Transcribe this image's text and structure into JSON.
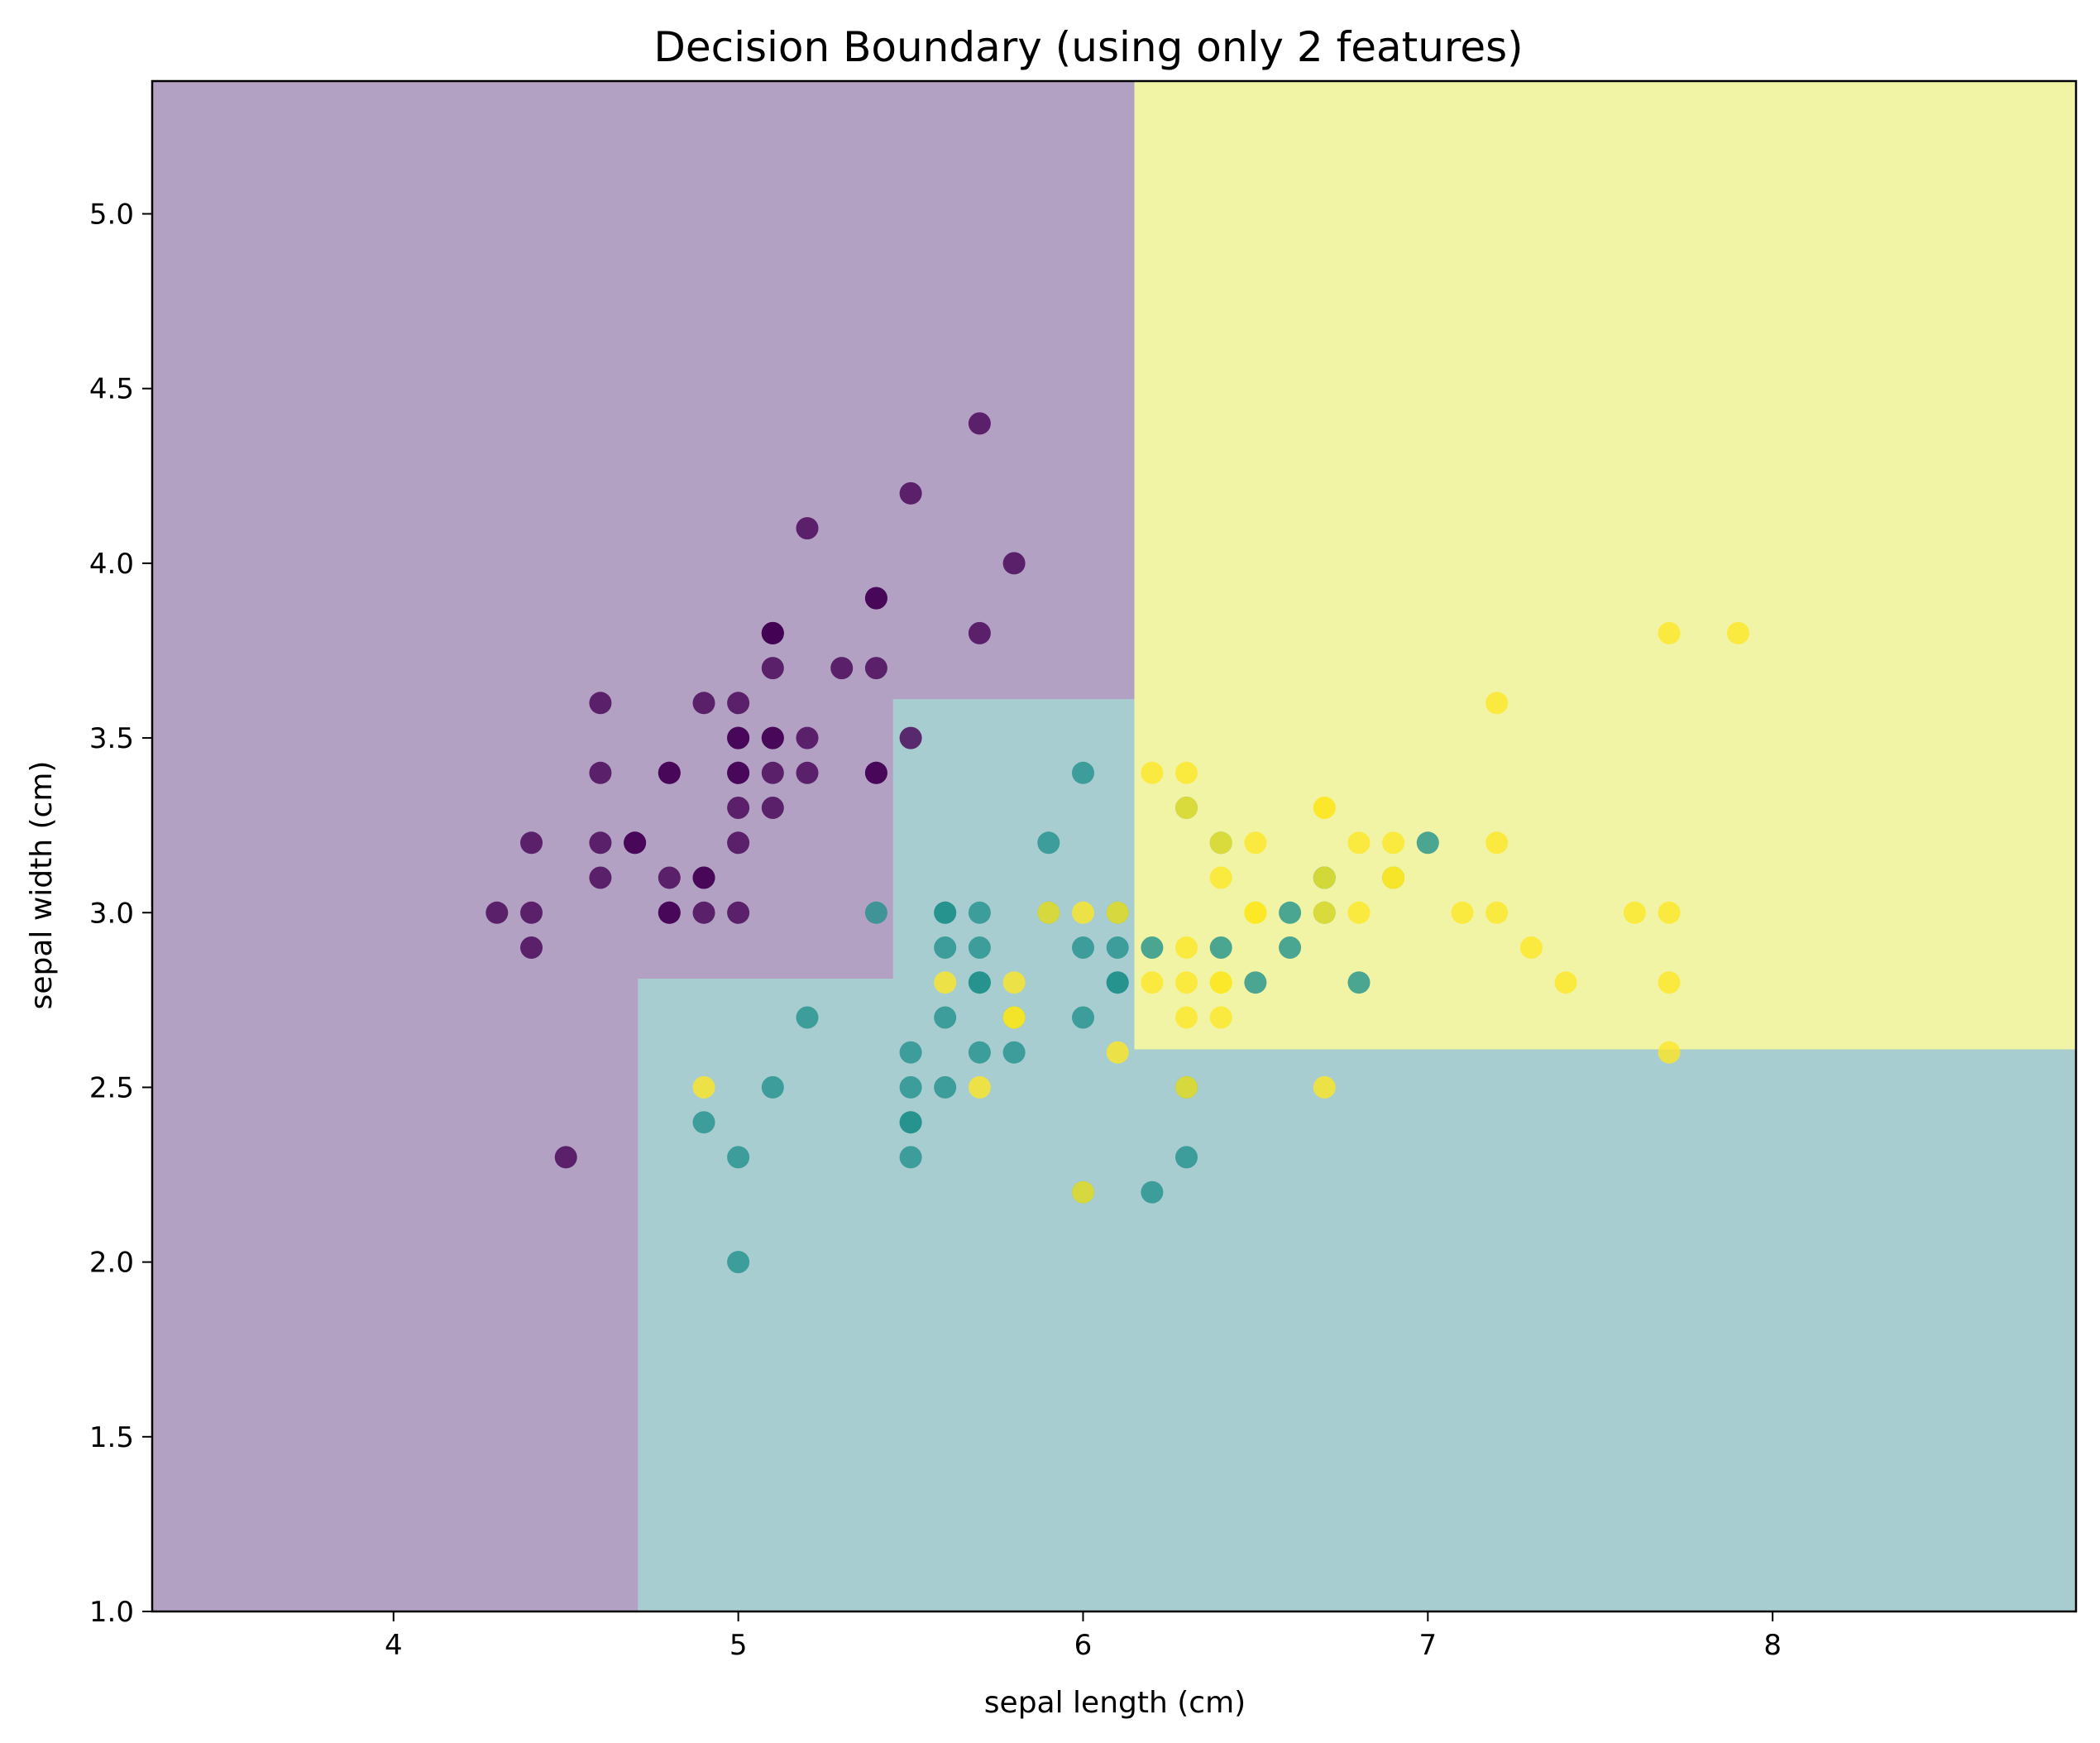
{
  "chart_data": {
    "type": "scatter",
    "title": "Decision Boundary (using only 2 features)",
    "xlabel": "sepal length (cm)",
    "ylabel": "sepal width (cm)",
    "xlim": [
      3.3,
      8.88
    ],
    "ylim": [
      1.0,
      5.38
    ],
    "xticks": [
      {
        "value": 4,
        "label": "4"
      },
      {
        "value": 5,
        "label": "5"
      },
      {
        "value": 6,
        "label": "6"
      },
      {
        "value": 7,
        "label": "7"
      },
      {
        "value": 8,
        "label": "8"
      }
    ],
    "yticks": [
      {
        "value": 1.0,
        "label": "1.0"
      },
      {
        "value": 1.5,
        "label": "1.5"
      },
      {
        "value": 2.0,
        "label": "2.0"
      },
      {
        "value": 2.5,
        "label": "2.5"
      },
      {
        "value": 3.0,
        "label": "3.0"
      },
      {
        "value": 3.5,
        "label": "3.5"
      },
      {
        "value": 4.0,
        "label": "4.0"
      },
      {
        "value": 4.5,
        "label": "4.5"
      },
      {
        "value": 5.0,
        "label": "5.0"
      }
    ],
    "grid": false,
    "legend": "none",
    "regions": [
      {
        "class": 0,
        "color": "#b3a1c4",
        "polygon": [
          [
            3.3,
            1.0
          ],
          [
            4.71,
            1.0
          ],
          [
            4.71,
            2.81
          ],
          [
            5.45,
            2.81
          ],
          [
            5.45,
            3.61
          ],
          [
            6.15,
            3.61
          ],
          [
            6.15,
            5.38
          ],
          [
            3.3,
            5.38
          ]
        ]
      },
      {
        "class": 1,
        "color": "#a8cdd0",
        "polygon": [
          [
            4.71,
            1.0
          ],
          [
            8.88,
            1.0
          ],
          [
            8.88,
            2.61
          ],
          [
            6.15,
            2.61
          ],
          [
            6.15,
            3.61
          ],
          [
            5.45,
            3.61
          ],
          [
            5.45,
            2.81
          ],
          [
            4.71,
            2.81
          ]
        ]
      },
      {
        "class": 2,
        "color": "#f1f4a4",
        "polygon": [
          [
            6.15,
            2.61
          ],
          [
            8.88,
            2.61
          ],
          [
            8.88,
            5.38
          ],
          [
            6.15,
            5.38
          ]
        ]
      }
    ],
    "series": [
      {
        "class": 0,
        "color": "#440154",
        "points": [
          [
            5.1,
            3.5
          ],
          [
            4.9,
            3.0
          ],
          [
            4.7,
            3.2
          ],
          [
            4.6,
            3.1
          ],
          [
            5.0,
            3.6
          ],
          [
            5.4,
            3.9
          ],
          [
            4.6,
            3.4
          ],
          [
            5.0,
            3.4
          ],
          [
            4.4,
            2.9
          ],
          [
            4.9,
            3.1
          ],
          [
            5.4,
            3.7
          ],
          [
            4.8,
            3.4
          ],
          [
            4.8,
            3.0
          ],
          [
            4.3,
            3.0
          ],
          [
            5.8,
            4.0
          ],
          [
            5.7,
            4.4
          ],
          [
            5.4,
            3.9
          ],
          [
            5.1,
            3.5
          ],
          [
            5.7,
            3.8
          ],
          [
            5.1,
            3.8
          ],
          [
            5.4,
            3.4
          ],
          [
            5.1,
            3.7
          ],
          [
            4.6,
            3.6
          ],
          [
            5.1,
            3.3
          ],
          [
            4.8,
            3.4
          ],
          [
            5.0,
            3.0
          ],
          [
            5.0,
            3.4
          ],
          [
            5.2,
            3.5
          ],
          [
            5.2,
            3.4
          ],
          [
            4.7,
            3.2
          ],
          [
            4.8,
            3.1
          ],
          [
            5.4,
            3.4
          ],
          [
            5.2,
            4.1
          ],
          [
            5.5,
            4.2
          ],
          [
            4.9,
            3.1
          ],
          [
            5.0,
            3.2
          ],
          [
            5.5,
            3.5
          ],
          [
            4.9,
            3.6
          ],
          [
            4.4,
            3.0
          ],
          [
            5.1,
            3.4
          ],
          [
            5.0,
            3.5
          ],
          [
            4.5,
            2.3
          ],
          [
            4.4,
            3.2
          ],
          [
            5.0,
            3.5
          ],
          [
            5.1,
            3.8
          ],
          [
            4.8,
            3.0
          ],
          [
            5.1,
            3.8
          ],
          [
            4.6,
            3.2
          ],
          [
            5.3,
            3.7
          ],
          [
            5.0,
            3.3
          ]
        ]
      },
      {
        "class": 1,
        "color": "#21918c",
        "points": [
          [
            7.0,
            3.2
          ],
          [
            6.4,
            3.2
          ],
          [
            6.9,
            3.1
          ],
          [
            5.5,
            2.3
          ],
          [
            6.5,
            2.8
          ],
          [
            5.7,
            2.8
          ],
          [
            6.3,
            3.3
          ],
          [
            4.9,
            2.4
          ],
          [
            6.6,
            2.9
          ],
          [
            5.2,
            2.7
          ],
          [
            5.0,
            2.0
          ],
          [
            5.9,
            3.0
          ],
          [
            6.0,
            2.2
          ],
          [
            6.1,
            2.9
          ],
          [
            5.6,
            2.9
          ],
          [
            6.7,
            3.1
          ],
          [
            5.6,
            3.0
          ],
          [
            5.8,
            2.7
          ],
          [
            6.2,
            2.2
          ],
          [
            5.6,
            2.5
          ],
          [
            5.9,
            3.2
          ],
          [
            6.1,
            2.8
          ],
          [
            6.3,
            2.5
          ],
          [
            6.1,
            2.8
          ],
          [
            6.4,
            2.9
          ],
          [
            6.6,
            3.0
          ],
          [
            6.8,
            2.8
          ],
          [
            6.7,
            3.0
          ],
          [
            6.0,
            2.9
          ],
          [
            5.7,
            2.6
          ],
          [
            5.5,
            2.4
          ],
          [
            5.5,
            2.4
          ],
          [
            5.8,
            2.7
          ],
          [
            6.0,
            2.7
          ],
          [
            5.4,
            3.0
          ],
          [
            6.0,
            3.4
          ],
          [
            6.7,
            3.1
          ],
          [
            6.3,
            2.3
          ],
          [
            5.6,
            3.0
          ],
          [
            5.5,
            2.5
          ],
          [
            5.5,
            2.6
          ],
          [
            6.1,
            3.0
          ],
          [
            5.8,
            2.6
          ],
          [
            5.0,
            2.3
          ],
          [
            5.6,
            2.7
          ],
          [
            5.7,
            3.0
          ],
          [
            5.7,
            2.9
          ],
          [
            6.2,
            2.9
          ],
          [
            5.1,
            2.5
          ],
          [
            5.7,
            2.8
          ]
        ]
      },
      {
        "class": 2,
        "color": "#fde725",
        "points": [
          [
            6.3,
            3.3
          ],
          [
            5.8,
            2.7
          ],
          [
            7.1,
            3.0
          ],
          [
            6.3,
            2.9
          ],
          [
            6.5,
            3.0
          ],
          [
            7.6,
            3.0
          ],
          [
            4.9,
            2.5
          ],
          [
            7.3,
            2.9
          ],
          [
            6.7,
            2.5
          ],
          [
            7.2,
            3.6
          ],
          [
            6.5,
            3.2
          ],
          [
            6.4,
            2.7
          ],
          [
            6.8,
            3.0
          ],
          [
            5.7,
            2.5
          ],
          [
            5.8,
            2.8
          ],
          [
            6.4,
            3.2
          ],
          [
            6.5,
            3.0
          ],
          [
            7.7,
            3.8
          ],
          [
            7.7,
            2.6
          ],
          [
            6.0,
            2.2
          ],
          [
            6.9,
            3.2
          ],
          [
            5.6,
            2.8
          ],
          [
            7.7,
            2.8
          ],
          [
            6.3,
            2.7
          ],
          [
            6.7,
            3.3
          ],
          [
            7.2,
            3.2
          ],
          [
            6.2,
            2.8
          ],
          [
            6.1,
            3.0
          ],
          [
            6.4,
            2.8
          ],
          [
            7.2,
            3.0
          ],
          [
            7.4,
            2.8
          ],
          [
            7.9,
            3.8
          ],
          [
            6.4,
            2.8
          ],
          [
            6.3,
            2.8
          ],
          [
            6.1,
            2.6
          ],
          [
            7.7,
            3.0
          ],
          [
            6.3,
            3.4
          ],
          [
            6.4,
            3.1
          ],
          [
            6.0,
            3.0
          ],
          [
            6.9,
            3.1
          ],
          [
            6.7,
            3.1
          ],
          [
            6.9,
            3.1
          ],
          [
            5.8,
            2.7
          ],
          [
            6.8,
            3.2
          ],
          [
            6.7,
            3.3
          ],
          [
            6.7,
            3.0
          ],
          [
            6.3,
            2.5
          ],
          [
            6.5,
            3.0
          ],
          [
            6.2,
            3.4
          ],
          [
            5.9,
            3.0
          ]
        ]
      }
    ]
  }
}
